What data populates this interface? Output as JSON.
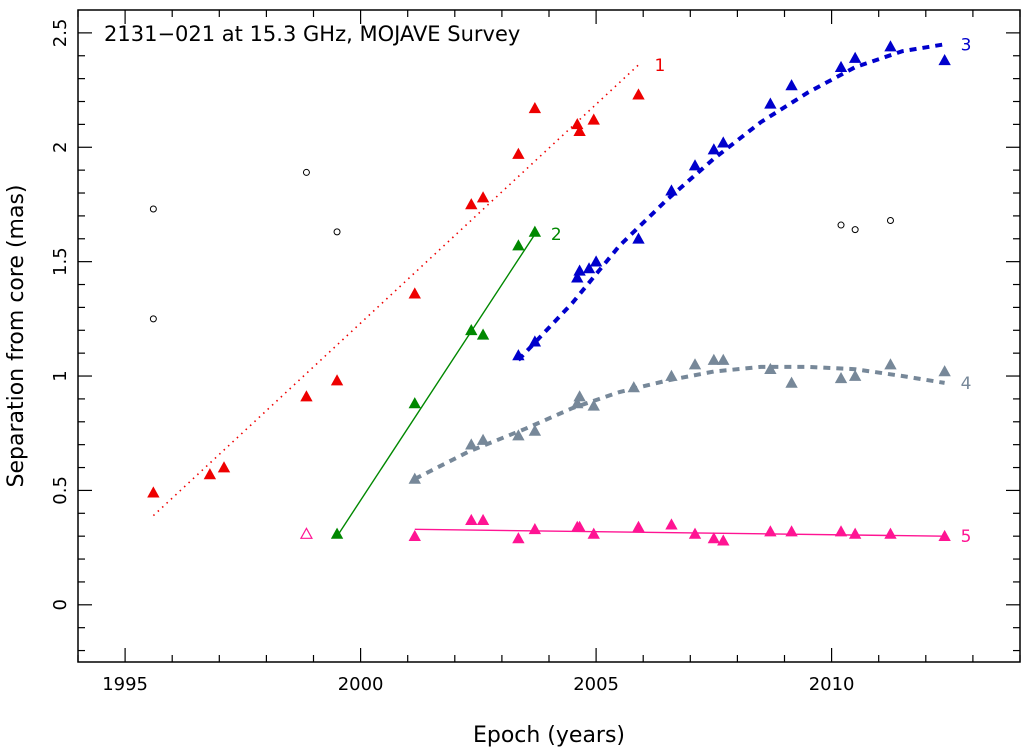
{
  "chart_data": {
    "type": "scatter",
    "title": "2131−021 at 15.3 GHz, MOJAVE Survey",
    "xlabel": "Epoch (years)",
    "ylabel": "Separation from core (mas)",
    "xlim": [
      1994,
      2014
    ],
    "ylim": [
      -0.25,
      2.6
    ],
    "x_ticks": [
      "1995",
      "2000",
      "2005",
      "2010"
    ],
    "x_tick_values": [
      1995,
      2000,
      2005,
      2010
    ],
    "y_ticks": [
      "0",
      "0.5",
      "1",
      "1.5",
      "2",
      "2.5"
    ],
    "y_tick_values": [
      0,
      0.5,
      1,
      1.5,
      2,
      2.5
    ],
    "grid": false,
    "series": [
      {
        "name": "1",
        "color": "#ee0000",
        "marker": "filled-triangle",
        "points": [
          [
            1995.6,
            0.49
          ],
          [
            1996.8,
            0.57
          ],
          [
            1997.1,
            0.6
          ],
          [
            1998.85,
            0.91
          ],
          [
            1999.5,
            0.98
          ],
          [
            2001.15,
            1.36
          ],
          [
            2002.35,
            1.75
          ],
          [
            2002.6,
            1.78
          ],
          [
            2003.35,
            1.97
          ],
          [
            2003.7,
            2.17
          ],
          [
            2004.6,
            2.1
          ],
          [
            2004.65,
            2.07
          ],
          [
            2004.95,
            2.12
          ],
          [
            2005.9,
            2.23
          ]
        ],
        "fit": {
          "style": "dotted",
          "points": [
            [
              1995.6,
              0.39
            ],
            [
              2005.9,
              2.36
            ]
          ]
        }
      },
      {
        "name": "2",
        "color": "#008800",
        "marker": "filled-triangle",
        "points": [
          [
            1999.5,
            0.31
          ],
          [
            2001.15,
            0.88
          ],
          [
            2002.35,
            1.2
          ],
          [
            2002.6,
            1.18
          ],
          [
            2003.35,
            1.57
          ],
          [
            2003.7,
            1.63
          ]
        ],
        "fit": {
          "style": "solid",
          "points": [
            [
              1999.5,
              0.3
            ],
            [
              2003.7,
              1.62
            ]
          ]
        }
      },
      {
        "name": "3",
        "color": "#0000cc",
        "marker": "filled-triangle",
        "points": [
          [
            2003.35,
            1.09
          ],
          [
            2003.7,
            1.15
          ],
          [
            2004.6,
            1.43
          ],
          [
            2004.65,
            1.46
          ],
          [
            2004.85,
            1.47
          ],
          [
            2005.0,
            1.5
          ],
          [
            2005.9,
            1.6
          ],
          [
            2006.6,
            1.81
          ],
          [
            2007.1,
            1.92
          ],
          [
            2007.5,
            1.99
          ],
          [
            2007.7,
            2.02
          ],
          [
            2008.7,
            2.19
          ],
          [
            2009.15,
            2.27
          ],
          [
            2010.2,
            2.35
          ],
          [
            2010.5,
            2.39
          ],
          [
            2011.25,
            2.44
          ],
          [
            2012.4,
            2.38
          ]
        ],
        "fit": {
          "style": "dashed",
          "points": [
            [
              2003.35,
              1.07
            ],
            [
              2004.5,
              1.32
            ],
            [
              2005.5,
              1.57
            ],
            [
              2006.5,
              1.77
            ],
            [
              2007.5,
              1.95
            ],
            [
              2008.5,
              2.11
            ],
            [
              2009.5,
              2.24
            ],
            [
              2010.5,
              2.35
            ],
            [
              2011.5,
              2.42
            ],
            [
              2012.4,
              2.45
            ]
          ]
        }
      },
      {
        "name": "4",
        "color": "#778899",
        "marker": "filled-triangle",
        "points": [
          [
            2001.15,
            0.55
          ],
          [
            2002.35,
            0.7
          ],
          [
            2002.6,
            0.72
          ],
          [
            2003.35,
            0.74
          ],
          [
            2003.7,
            0.76
          ],
          [
            2004.6,
            0.88
          ],
          [
            2004.65,
            0.91
          ],
          [
            2004.95,
            0.87
          ],
          [
            2005.8,
            0.95
          ],
          [
            2006.6,
            1.0
          ],
          [
            2007.1,
            1.05
          ],
          [
            2007.5,
            1.07
          ],
          [
            2007.7,
            1.07
          ],
          [
            2008.7,
            1.03
          ],
          [
            2009.15,
            0.97
          ],
          [
            2010.2,
            0.99
          ],
          [
            2010.5,
            1.0
          ],
          [
            2011.25,
            1.05
          ],
          [
            2012.4,
            1.02
          ]
        ],
        "fit": {
          "style": "dashed",
          "points": [
            [
              2001.15,
              0.55
            ],
            [
              2002.3,
              0.67
            ],
            [
              2003.5,
              0.77
            ],
            [
              2004.5,
              0.86
            ],
            [
              2005.5,
              0.93
            ],
            [
              2006.5,
              0.98
            ],
            [
              2007.5,
              1.02
            ],
            [
              2008.5,
              1.04
            ],
            [
              2009.5,
              1.04
            ],
            [
              2010.5,
              1.03
            ],
            [
              2011.5,
              1.0
            ],
            [
              2012.4,
              0.97
            ]
          ]
        }
      },
      {
        "name": "5",
        "color": "#ff1493",
        "marker": "filled-triangle",
        "points": [
          [
            2001.15,
            0.3
          ],
          [
            2002.35,
            0.37
          ],
          [
            2002.6,
            0.37
          ],
          [
            2003.35,
            0.29
          ],
          [
            2003.7,
            0.33
          ],
          [
            2004.6,
            0.34
          ],
          [
            2004.65,
            0.34
          ],
          [
            2004.95,
            0.31
          ],
          [
            2005.9,
            0.34
          ],
          [
            2006.6,
            0.35
          ],
          [
            2007.1,
            0.31
          ],
          [
            2007.5,
            0.29
          ],
          [
            2007.7,
            0.28
          ],
          [
            2008.7,
            0.32
          ],
          [
            2009.15,
            0.32
          ],
          [
            2010.2,
            0.32
          ],
          [
            2010.5,
            0.31
          ],
          [
            2011.25,
            0.31
          ],
          [
            2012.4,
            0.3
          ]
        ],
        "open_points": [
          [
            1998.85,
            0.31
          ]
        ],
        "fit": {
          "style": "solid",
          "points": [
            [
              2001.15,
              0.33
            ],
            [
              2012.4,
              0.3
            ]
          ]
        }
      }
    ],
    "unassigned_points": {
      "color": "#000000",
      "marker": "open-circle",
      "points": [
        [
          1995.6,
          1.73
        ],
        [
          1995.6,
          1.25
        ],
        [
          1998.85,
          1.89
        ],
        [
          1999.5,
          1.63
        ],
        [
          2010.2,
          1.66
        ],
        [
          2010.5,
          1.64
        ],
        [
          2011.25,
          1.68
        ]
      ]
    }
  }
}
